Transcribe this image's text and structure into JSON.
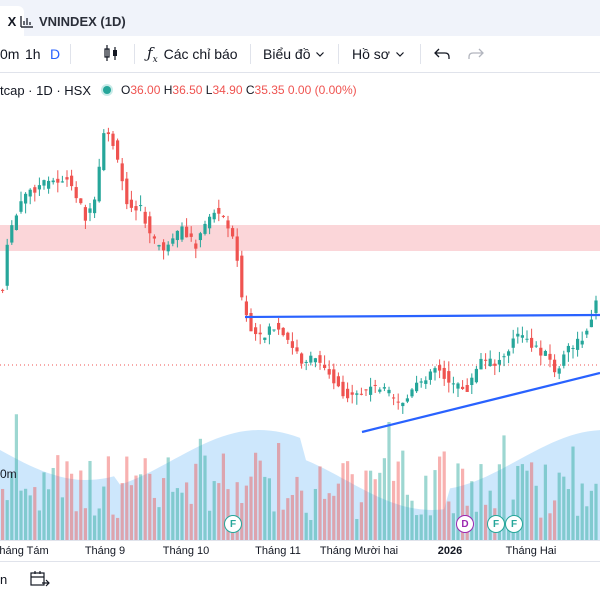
{
  "tabs": {
    "active_label": "X",
    "inactive_label": "VNINDEX (1D)"
  },
  "toolbar": {
    "interval_partial": "0m",
    "interval_1h": "1h",
    "interval_d": "D",
    "indicators_label": "Các chỉ báo",
    "chart_type_label": "Biểu đồ",
    "layout_label": "Hồ sơ"
  },
  "legend": {
    "symbol": "tcap · 1D · HSX",
    "open_key": "O",
    "open": "36.00",
    "high_key": "H",
    "high": "36.50",
    "low_key": "L",
    "low": "34.90",
    "close_key": "C",
    "close": "35.35",
    "change": "0.00 (0.00%)"
  },
  "volume_label": "0m",
  "markers": {
    "f": "F",
    "d": "D"
  },
  "xaxis": {
    "labels": [
      "háng Tám",
      "Tháng 9",
      "Tháng 10",
      "Tháng 11",
      "Tháng Mười hai",
      "2026",
      "Tháng Hai"
    ]
  },
  "bottombar": {
    "range_label": "n"
  },
  "colors": {
    "up": "#26a69a",
    "down": "#ef5350",
    "up_volume": "#26a69a",
    "down_volume": "#ef5350",
    "trendline": "#2962ff",
    "zone": "#f8bbc0"
  },
  "icons": [
    "chart-bars-icon",
    "candle-type-icon",
    "fx-icon",
    "chevron-down-icon",
    "undo-icon",
    "redo-icon",
    "date-range-icon",
    "close-icon"
  ]
}
